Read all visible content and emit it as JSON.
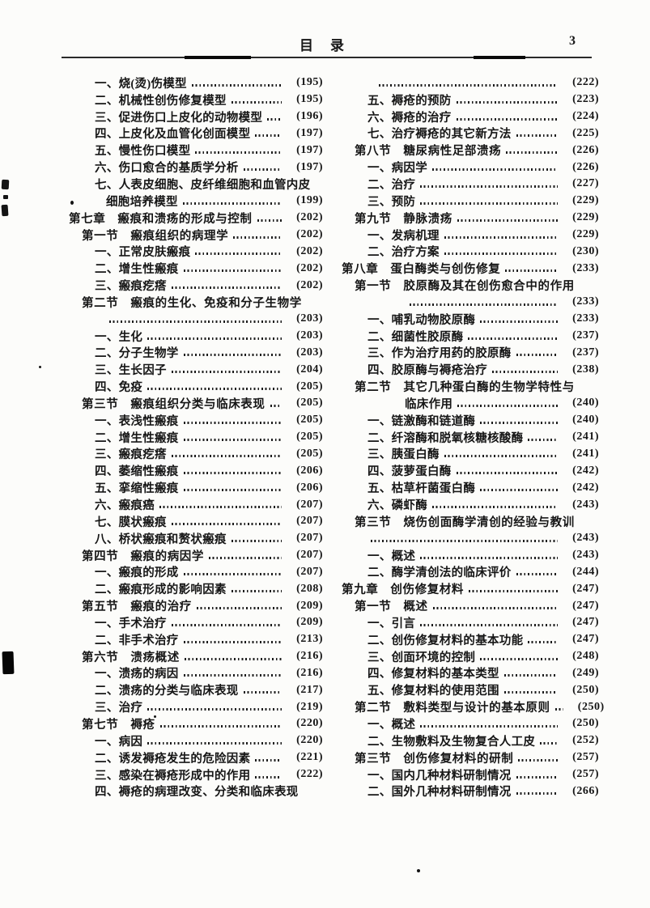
{
  "page": {
    "background": "#fcfcfa",
    "ink": "#161616"
  },
  "header": {
    "title": "目　录",
    "page_number": "3"
  },
  "columns": {
    "left": [
      {
        "level": "item",
        "indent": 32,
        "text": "一、烧(烫)伤模型",
        "page": "(195)"
      },
      {
        "level": "item",
        "indent": 32,
        "text": "二、机械性创伤修复模型",
        "page": "(195)"
      },
      {
        "level": "item",
        "indent": 32,
        "text": "三、促进伤口上皮化的动物模型",
        "page": "(196)"
      },
      {
        "level": "item",
        "indent": 32,
        "text": "四、上皮化及血管化创面模型",
        "page": "(197)"
      },
      {
        "level": "item",
        "indent": 32,
        "text": "五、慢性伤口模型",
        "page": "(197)"
      },
      {
        "level": "item",
        "indent": 32,
        "text": "六、伤口愈合的基质学分析",
        "page": "(197)"
      },
      {
        "level": "item",
        "indent": 32,
        "text": "七、人表皮细胞、皮纤维细胞和血管内皮",
        "page": null
      },
      {
        "level": "continuation",
        "indent": 46,
        "text": "细胞培养模型",
        "page": "(199)"
      },
      {
        "level": "chapter",
        "indent": 0,
        "text": "第七章　瘢痕和溃疡的形成与控制",
        "page": "(202)"
      },
      {
        "level": "section",
        "indent": 16,
        "text": "第一节　瘢痕组织的病理学",
        "page": "(202)"
      },
      {
        "level": "item",
        "indent": 32,
        "text": "一、正常皮肤瘢痕",
        "page": "(202)"
      },
      {
        "level": "item",
        "indent": 32,
        "text": "二、增生性瘢痕",
        "page": "(202)"
      },
      {
        "level": "item",
        "indent": 32,
        "text": "三、瘢痕疙瘩",
        "page": "(202)"
      },
      {
        "level": "section",
        "indent": 16,
        "text": "第二节　瘢痕的生化、免疫和分子生物学",
        "page": null
      },
      {
        "level": "continuation",
        "indent": 44,
        "text": "",
        "page": "(203)"
      },
      {
        "level": "item",
        "indent": 32,
        "text": "一、生化",
        "page": "(203)"
      },
      {
        "level": "item",
        "indent": 32,
        "text": "二、分子生物学",
        "page": "(203)"
      },
      {
        "level": "item",
        "indent": 32,
        "text": "三、生长因子",
        "page": "(204)"
      },
      {
        "level": "item",
        "indent": 32,
        "text": "四、免疫",
        "page": "(205)"
      },
      {
        "level": "section",
        "indent": 16,
        "text": "第三节　瘢痕组织分类与临床表现",
        "page": "(205)"
      },
      {
        "level": "item",
        "indent": 32,
        "text": "一、表浅性瘢痕",
        "page": "(205)"
      },
      {
        "level": "item",
        "indent": 32,
        "text": "二、增生性瘢痕",
        "page": "(205)"
      },
      {
        "level": "item",
        "indent": 32,
        "text": "三、瘢痕疙瘩",
        "page": "(205)"
      },
      {
        "level": "item",
        "indent": 32,
        "text": "四、萎缩性瘢痕",
        "page": "(206)"
      },
      {
        "level": "item",
        "indent": 32,
        "text": "五、挛缩性瘢痕",
        "page": "(206)"
      },
      {
        "level": "item",
        "indent": 32,
        "text": "六、瘢痕癌",
        "page": "(207)"
      },
      {
        "level": "item",
        "indent": 32,
        "text": "七、膜状瘢痕",
        "page": "(207)"
      },
      {
        "level": "item",
        "indent": 32,
        "text": "八、桥状瘢痕和赘状瘢痕",
        "page": "(207)"
      },
      {
        "level": "section",
        "indent": 16,
        "text": "第四节　瘢痕的病因学",
        "page": "(207)"
      },
      {
        "level": "item",
        "indent": 32,
        "text": "一、瘢痕的形成",
        "page": "(207)"
      },
      {
        "level": "item",
        "indent": 32,
        "text": "二、瘢痕形成的影响因素",
        "page": "(208)"
      },
      {
        "level": "section",
        "indent": 16,
        "text": "第五节　瘢痕的治疗",
        "page": "(209)"
      },
      {
        "level": "item",
        "indent": 32,
        "text": "一、手术治疗",
        "page": "(209)"
      },
      {
        "level": "item",
        "indent": 32,
        "text": "二、非手术治疗",
        "page": "(213)"
      },
      {
        "level": "section",
        "indent": 16,
        "text": "第六节　溃疡概述",
        "page": "(216)"
      },
      {
        "level": "item",
        "indent": 32,
        "text": "一、溃疡的病因",
        "page": "(216)"
      },
      {
        "level": "item",
        "indent": 32,
        "text": "二、溃疡的分类与临床表现",
        "page": "(217)"
      },
      {
        "level": "item",
        "indent": 32,
        "text": "三、治疗",
        "page": "(219)"
      },
      {
        "level": "section",
        "indent": 16,
        "text": "第七节　褥疮",
        "page": "(220)"
      },
      {
        "level": "item",
        "indent": 32,
        "text": "一、病因",
        "page": "(220)"
      },
      {
        "level": "item",
        "indent": 32,
        "text": "二、诱发褥疮发生的危险因素",
        "page": "(221)"
      },
      {
        "level": "item",
        "indent": 32,
        "text": "三、感染在褥疮形成中的作用",
        "page": "(222)"
      },
      {
        "level": "item",
        "indent": 32,
        "text": "四、褥疮的病理改变、分类和临床表现",
        "page": null
      }
    ],
    "right": [
      {
        "level": "continuation",
        "indent": 40,
        "text": "",
        "page": "(222)"
      },
      {
        "level": "item",
        "indent": 32,
        "text": "五、褥疮的预防",
        "page": "(223)"
      },
      {
        "level": "item",
        "indent": 32,
        "text": "六、褥疮的治疗",
        "page": "(224)"
      },
      {
        "level": "item",
        "indent": 32,
        "text": "七、治疗褥疮的其它新方法",
        "page": "(225)"
      },
      {
        "level": "section",
        "indent": 16,
        "text": "第八节　糖尿病性足部溃疡",
        "page": "(226)"
      },
      {
        "level": "item",
        "indent": 32,
        "text": "一、病因学",
        "page": "(226)"
      },
      {
        "level": "item",
        "indent": 32,
        "text": "二、治疗",
        "page": "(227)"
      },
      {
        "level": "item",
        "indent": 32,
        "text": "三、预防",
        "page": "(229)"
      },
      {
        "level": "section",
        "indent": 16,
        "text": "第九节　静脉溃疡",
        "page": "(229)"
      },
      {
        "level": "item",
        "indent": 32,
        "text": "一、发病机理",
        "page": "(229)"
      },
      {
        "level": "item",
        "indent": 32,
        "text": "二、治疗方案",
        "page": "(230)"
      },
      {
        "level": "chapter",
        "indent": 0,
        "text": "第八章　蛋白酶类与创伤修复",
        "page": "(233)"
      },
      {
        "level": "section",
        "indent": 16,
        "text": "第一节　胶原酶及其在创伤愈合中的作用",
        "page": null
      },
      {
        "level": "continuation",
        "indent": 78,
        "text": "",
        "page": "(233)"
      },
      {
        "level": "item",
        "indent": 32,
        "text": "一、哺乳动物胶原酶",
        "page": "(233)"
      },
      {
        "level": "item",
        "indent": 32,
        "text": "二、细菌性胶原酶",
        "page": "(237)"
      },
      {
        "level": "item",
        "indent": 32,
        "text": "三、作为治疗用药的胶原酶",
        "page": "(237)"
      },
      {
        "level": "item",
        "indent": 32,
        "text": "四、胶原酶与褥疮治疗",
        "page": "(238)"
      },
      {
        "level": "section",
        "indent": 16,
        "text": "第二节　其它几种蛋白酶的生物学特性与",
        "page": null
      },
      {
        "level": "continuation",
        "indent": 78,
        "text": "临床作用",
        "page": "(240)"
      },
      {
        "level": "item",
        "indent": 32,
        "text": "一、链激酶和链道酶",
        "page": "(240)"
      },
      {
        "level": "item",
        "indent": 32,
        "text": "二、纤溶酶和脱氧核糖核酸酶",
        "page": "(241)"
      },
      {
        "level": "item",
        "indent": 32,
        "text": "三、胰蛋白酶",
        "page": "(241)"
      },
      {
        "level": "item",
        "indent": 32,
        "text": "四、菠萝蛋白酶",
        "page": "(242)"
      },
      {
        "level": "item",
        "indent": 32,
        "text": "五、枯草杆菌蛋白酶",
        "page": "(242)"
      },
      {
        "level": "item",
        "indent": 32,
        "text": "六、磷虾酶",
        "page": "(243)"
      },
      {
        "level": "section",
        "indent": 16,
        "text": "第三节　烧伤创面酶学清创的经验与教训",
        "page": null
      },
      {
        "level": "continuation",
        "indent": 30,
        "text": "",
        "page": "(243)"
      },
      {
        "level": "item",
        "indent": 32,
        "text": "一、概述",
        "page": "(243)"
      },
      {
        "level": "item",
        "indent": 32,
        "text": "二、酶学清创法的临床评价",
        "page": "(244)"
      },
      {
        "level": "chapter",
        "indent": 0,
        "text": "第九章　创伤修复材料",
        "page": "(247)"
      },
      {
        "level": "section",
        "indent": 16,
        "text": "第一节　概述",
        "page": "(247)"
      },
      {
        "level": "item",
        "indent": 32,
        "text": "一、引言",
        "page": "(247)"
      },
      {
        "level": "item",
        "indent": 32,
        "text": "二、创伤修复材料的基本功能",
        "page": "(247)"
      },
      {
        "level": "item",
        "indent": 32,
        "text": "三、创面环境的控制",
        "page": "(248)"
      },
      {
        "level": "item",
        "indent": 32,
        "text": "四、修复材料的基本类型",
        "page": "(249)"
      },
      {
        "level": "item",
        "indent": 32,
        "text": "五、修复材料的使用范围",
        "page": "(250)"
      },
      {
        "level": "section",
        "indent": 16,
        "text": "第二节　敷料类型与设计的基本原则",
        "page": "(250)"
      },
      {
        "level": "item",
        "indent": 32,
        "text": "一、概述",
        "page": "(250)"
      },
      {
        "level": "item",
        "indent": 32,
        "text": "二、生物敷料及生物复合人工皮",
        "page": "(252)"
      },
      {
        "level": "section",
        "indent": 16,
        "text": "第三节　创伤修复材料的研制",
        "page": "(257)"
      },
      {
        "level": "item",
        "indent": 32,
        "text": "一、国内几种材料研制情况",
        "page": "(257)"
      },
      {
        "level": "item",
        "indent": 32,
        "text": "二、国外几种材料研制情况",
        "page": "(266)"
      }
    ]
  }
}
